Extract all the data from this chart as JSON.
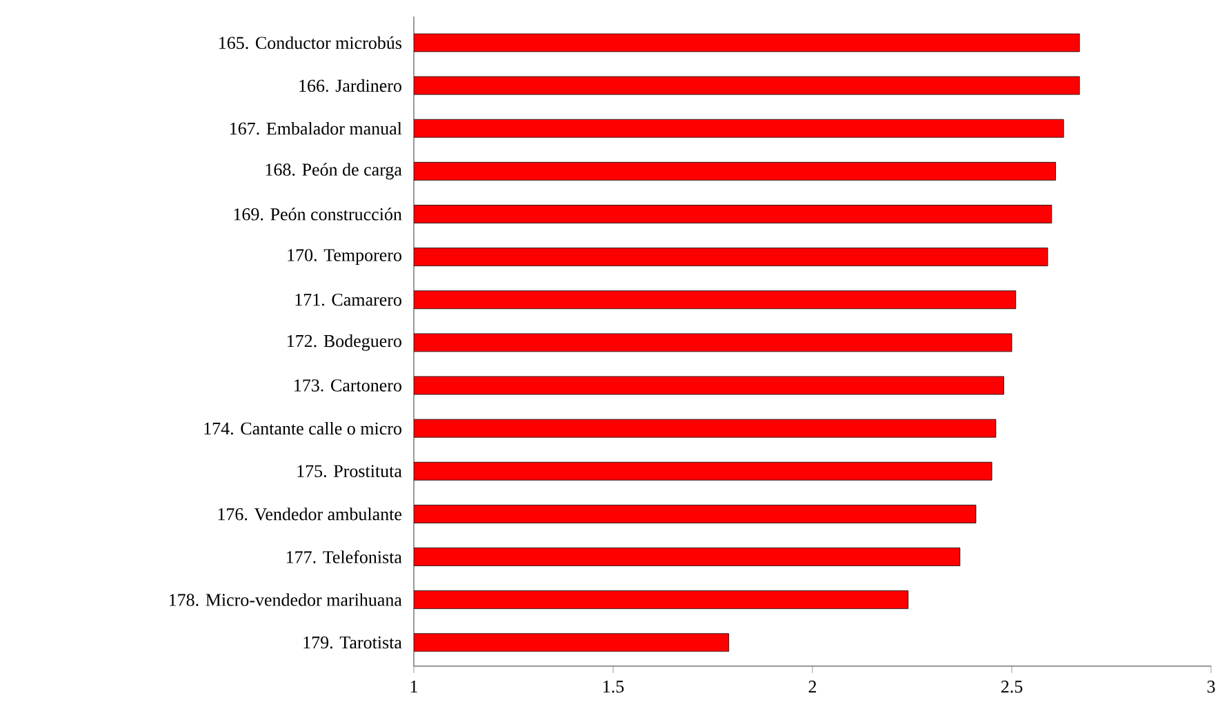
{
  "chart_data": {
    "type": "bar",
    "orientation": "horizontal",
    "categories": [
      "165. Conductor microbús",
      "166. Jardinero",
      "167. Embalador manual",
      "168. Peón de carga",
      "169. Peón construcción",
      "170. Temporero",
      "171. Camarero",
      "172. Bodeguero",
      "173. Cartonero",
      "174. Cantante calle o micro",
      "175. Prostituta",
      "176. Vendedor ambulante",
      "177. Telefonista",
      "178. Micro-vendedor marihuana",
      "179. Tarotista"
    ],
    "values": [
      2.67,
      2.67,
      2.63,
      2.61,
      2.6,
      2.59,
      2.51,
      2.5,
      2.48,
      2.46,
      2.45,
      2.41,
      2.37,
      2.24,
      1.79
    ],
    "color": "#ff0000",
    "xlim": [
      1,
      3
    ],
    "xticks": [
      1,
      1.5,
      2,
      2.5,
      3
    ]
  }
}
